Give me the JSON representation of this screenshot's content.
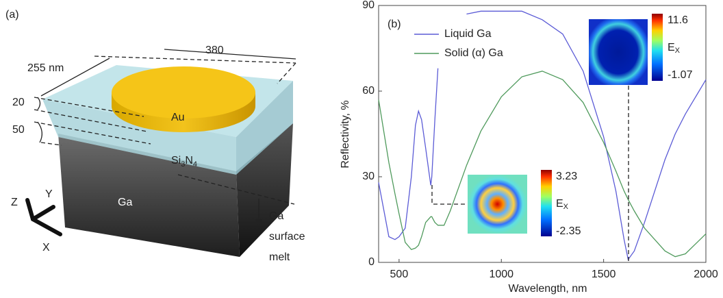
{
  "diagram": {
    "panel_label": "(a)",
    "width_label": "255 nm",
    "length_label": "380",
    "au_thickness": "20",
    "si_thickness": "50",
    "au_label": "Au",
    "si_label": [
      "Si",
      "3",
      "N",
      "4"
    ],
    "ga_label": "Ga",
    "axes": [
      "Z",
      "Y",
      "X"
    ],
    "melt_label": [
      "Ga",
      "surface",
      "melt"
    ]
  },
  "chart_data": {
    "type": "line",
    "panel_label": "(b)",
    "x_label": "Wavelength, nm",
    "y_label": "Reflectivity, %",
    "x": [
      400,
      450,
      480,
      500,
      530,
      560,
      580,
      595,
      610,
      630,
      655,
      660,
      675,
      690,
      720,
      750,
      800,
      830,
      900,
      1000,
      1100,
      1200,
      1300,
      1400,
      1500,
      1560,
      1600,
      1620,
      1650,
      1700,
      1800,
      1850,
      1900,
      2000
    ],
    "series": [
      {
        "name": "Liquid Ga",
        "color": "#5b5bd6",
        "values": [
          28,
          9,
          8,
          9,
          12,
          30,
          48,
          53,
          50,
          40,
          27,
          30,
          50,
          68,
          null,
          null,
          null,
          87,
          88,
          88,
          88,
          85,
          80,
          67,
          44,
          25,
          8,
          1,
          4,
          14,
          36,
          45,
          52,
          64
        ]
      },
      {
        "name": "Solid (α) Ga",
        "color": "#4f9a5c",
        "values": [
          57,
          35,
          24,
          17,
          7,
          4.5,
          5,
          6,
          9,
          14,
          16,
          16,
          14,
          13,
          13,
          18,
          28,
          34,
          46,
          58,
          65,
          67,
          64,
          56,
          42,
          32,
          25,
          22,
          18,
          12,
          4,
          2,
          3,
          10
        ]
      }
    ],
    "xlim": [
      400,
      2000
    ],
    "xticks": [
      500,
      1000,
      1500,
      2000
    ],
    "ylim": [
      0,
      90
    ],
    "yticks": [
      0,
      30,
      60,
      90
    ],
    "legend": "upper left",
    "insets": [
      {
        "max": "11.6",
        "field": [
          "E",
          "X"
        ],
        "min": "-1.07"
      },
      {
        "max": "3.23",
        "field": [
          "E",
          "X"
        ],
        "min": "-2.35"
      }
    ]
  }
}
